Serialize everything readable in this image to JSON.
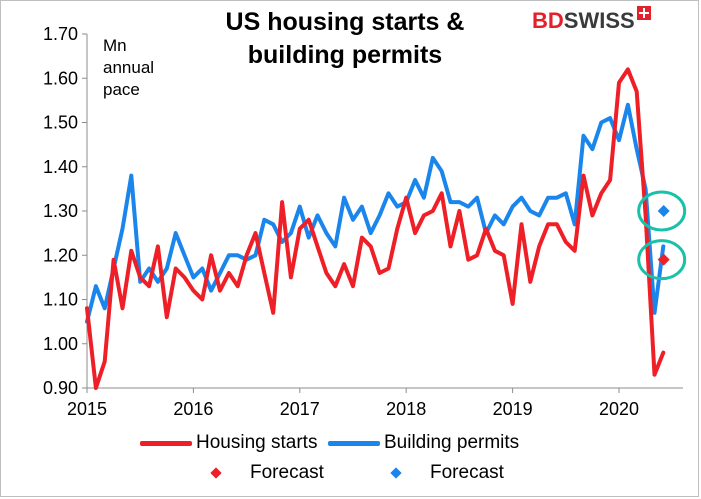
{
  "title_line1": "US housing starts &",
  "title_line2": "building permits",
  "unit_label_1": "Mn",
  "unit_label_2": "annual",
  "unit_label_3": "pace",
  "brand": {
    "bd": "BD",
    "swiss": "SWISS"
  },
  "colors": {
    "starts": "#ee1f26",
    "permits": "#1a86ec",
    "circle": "#18c1a8"
  },
  "chart_data": {
    "type": "line",
    "x_ticks": [
      "2015",
      "2016",
      "2017",
      "2018",
      "2019",
      "2020"
    ],
    "y_ticks": [
      "0.90",
      "1.00",
      "1.10",
      "1.20",
      "1.30",
      "1.40",
      "1.50",
      "1.60",
      "1.70"
    ],
    "ylim": [
      0.9,
      1.7
    ],
    "xlim": [
      2015.0,
      2020.583
    ],
    "grid": false,
    "legend_position": "bottom",
    "series": [
      {
        "name": "Housing starts",
        "values": [
          1.08,
          0.9,
          0.96,
          1.19,
          1.08,
          1.21,
          1.15,
          1.13,
          1.22,
          1.06,
          1.17,
          1.15,
          1.12,
          1.1,
          1.2,
          1.12,
          1.16,
          1.13,
          1.2,
          1.25,
          1.16,
          1.07,
          1.32,
          1.15,
          1.26,
          1.28,
          1.22,
          1.16,
          1.13,
          1.18,
          1.13,
          1.24,
          1.22,
          1.16,
          1.17,
          1.26,
          1.33,
          1.25,
          1.29,
          1.3,
          1.34,
          1.22,
          1.3,
          1.19,
          1.2,
          1.26,
          1.21,
          1.2,
          1.09,
          1.27,
          1.14,
          1.22,
          1.27,
          1.27,
          1.23,
          1.21,
          1.38,
          1.29,
          1.34,
          1.37,
          1.59,
          1.62,
          1.57,
          1.29,
          0.93,
          0.98
        ]
      },
      {
        "name": "Building permits",
        "values": [
          1.05,
          1.13,
          1.08,
          1.17,
          1.26,
          1.38,
          1.14,
          1.17,
          1.14,
          1.17,
          1.25,
          1.2,
          1.15,
          1.17,
          1.12,
          1.16,
          1.2,
          1.2,
          1.19,
          1.2,
          1.28,
          1.27,
          1.23,
          1.25,
          1.31,
          1.24,
          1.29,
          1.25,
          1.22,
          1.33,
          1.28,
          1.31,
          1.25,
          1.29,
          1.34,
          1.31,
          1.32,
          1.37,
          1.33,
          1.42,
          1.39,
          1.32,
          1.32,
          1.31,
          1.33,
          1.25,
          1.29,
          1.27,
          1.31,
          1.33,
          1.3,
          1.29,
          1.33,
          1.33,
          1.34,
          1.27,
          1.47,
          1.44,
          1.5,
          1.51,
          1.46,
          1.54,
          1.44,
          1.35,
          1.07,
          1.22
        ]
      },
      {
        "name": "Forecast",
        "x": [
          2020.42
        ],
        "values": [
          1.19
        ]
      },
      {
        "name": "Forecast",
        "x": [
          2020.42
        ],
        "values": [
          1.3
        ]
      }
    ]
  },
  "legend": {
    "starts": "Housing starts",
    "permits": "Building permits",
    "forecast_starts": "Forecast",
    "forecast_permits": "Forecast"
  }
}
